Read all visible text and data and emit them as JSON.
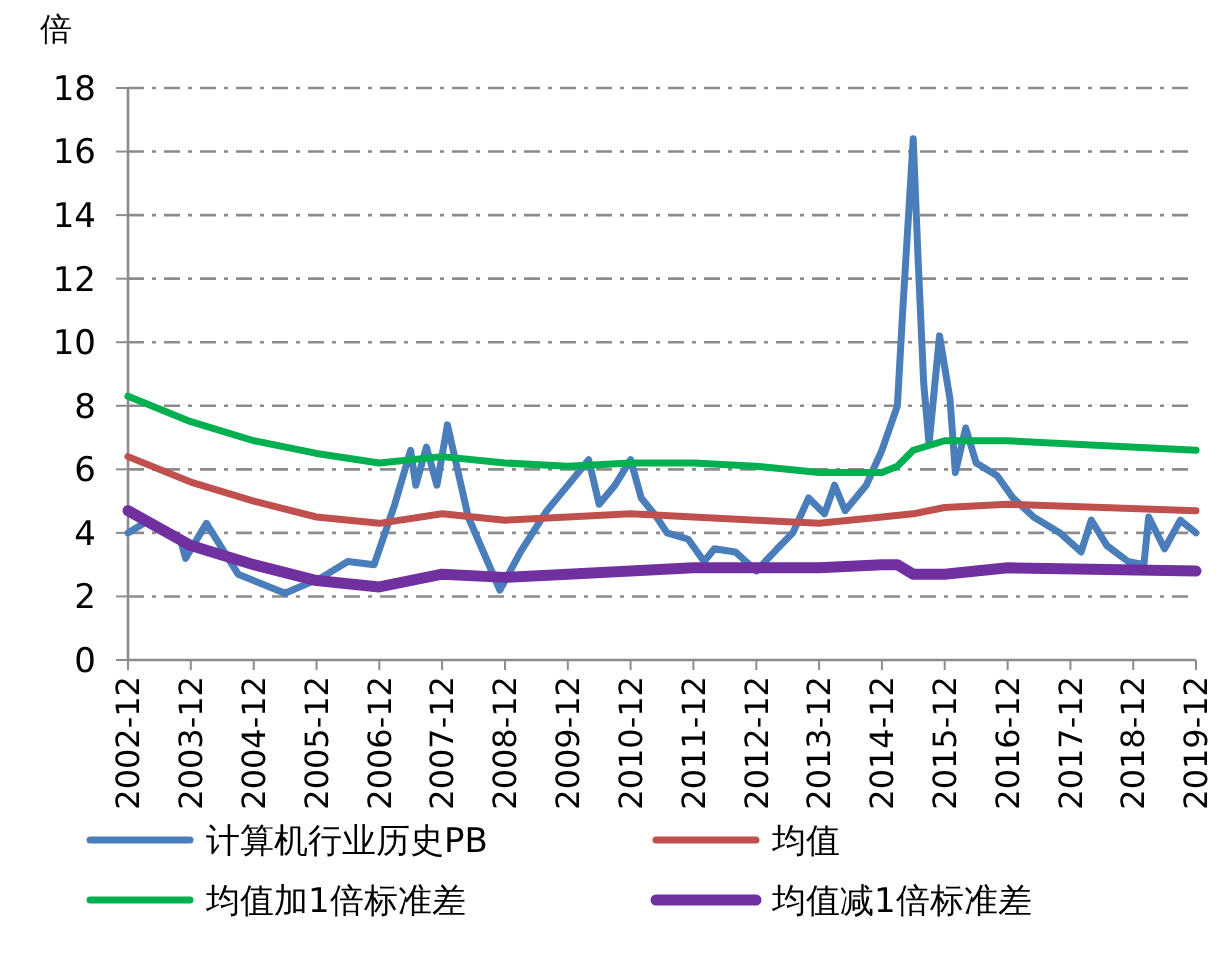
{
  "chart_data": {
    "type": "line",
    "ylabel": "倍",
    "x": [
      "2002-12",
      "2003-04",
      "2003-10",
      "2003-11",
      "2004-03",
      "2004-09",
      "2005-06",
      "2006-01",
      "2006-06",
      "2006-11",
      "2007-03",
      "2007-06",
      "2007-07",
      "2007-09",
      "2007-11",
      "2008-01",
      "2008-05",
      "2008-11",
      "2009-03",
      "2009-08",
      "2010-01",
      "2010-04",
      "2010-06",
      "2010-09",
      "2010-12",
      "2011-02",
      "2011-05",
      "2011-07",
      "2011-11",
      "2012-02",
      "2012-04",
      "2012-08",
      "2012-12",
      "2013-04",
      "2013-07",
      "2013-10",
      "2014-01",
      "2014-03",
      "2014-05",
      "2014-09",
      "2014-12",
      "2015-03",
      "2015-04",
      "2015-06",
      "2015-07",
      "2015-08",
      "2015-09",
      "2015-11",
      "2016-01",
      "2016-02",
      "2016-04",
      "2016-06",
      "2016-10",
      "2017-01",
      "2017-05",
      "2017-10",
      "2018-02",
      "2018-04",
      "2018-07",
      "2018-11",
      "2019-02",
      "2019-03",
      "2019-06",
      "2019-09",
      "2019-12"
    ],
    "series": [
      {
        "name": "计算机行业历史PB",
        "color": "#4a7ebb",
        "values": [
          4.0,
          4.4,
          3.8,
          3.2,
          4.3,
          2.7,
          2.1,
          2.6,
          3.1,
          3.0,
          4.9,
          6.6,
          5.5,
          6.7,
          5.5,
          7.4,
          4.5,
          2.2,
          3.4,
          4.7,
          5.7,
          6.3,
          4.9,
          5.5,
          6.3,
          5.1,
          4.5,
          4.0,
          3.8,
          3.1,
          3.5,
          3.4,
          2.8,
          3.5,
          4.0,
          5.1,
          4.6,
          5.5,
          4.7,
          5.5,
          6.6,
          8.0,
          11.0,
          16.4,
          12.4,
          8.7,
          6.8,
          10.2,
          8.2,
          5.9,
          7.3,
          6.2,
          5.8,
          5.1,
          4.5,
          4.0,
          3.4,
          4.4,
          3.6,
          3.1,
          3.0,
          4.5,
          3.5,
          4.4,
          4.0
        ]
      },
      {
        "name": "均值",
        "color": "#c0504d",
        "x": [
          "2002-12",
          "2003-12",
          "2004-12",
          "2005-12",
          "2006-12",
          "2007-12",
          "2008-12",
          "2009-12",
          "2010-12",
          "2011-12",
          "2012-12",
          "2013-12",
          "2014-12",
          "2015-06",
          "2015-12",
          "2016-12",
          "2019-12"
        ],
        "values": [
          6.4,
          5.6,
          5.0,
          4.5,
          4.3,
          4.6,
          4.4,
          4.5,
          4.6,
          4.5,
          4.4,
          4.3,
          4.5,
          4.6,
          4.8,
          4.9,
          4.7
        ]
      },
      {
        "name": "均值加1倍标准差",
        "color": "#00b050",
        "x": [
          "2002-12",
          "2003-12",
          "2004-12",
          "2005-12",
          "2006-12",
          "2007-12",
          "2008-12",
          "2009-12",
          "2010-12",
          "2011-12",
          "2012-12",
          "2013-12",
          "2014-12",
          "2015-03",
          "2015-06",
          "2015-12",
          "2016-12",
          "2019-12"
        ],
        "values": [
          8.3,
          7.5,
          6.9,
          6.5,
          6.2,
          6.4,
          6.2,
          6.1,
          6.2,
          6.2,
          6.1,
          5.9,
          5.9,
          6.1,
          6.6,
          6.9,
          6.9,
          6.6
        ]
      },
      {
        "name": "均值减1倍标准差",
        "color": "#7030a0",
        "x": [
          "2002-12",
          "2003-12",
          "2004-12",
          "2005-12",
          "2006-12",
          "2007-12",
          "2008-12",
          "2009-12",
          "2010-12",
          "2011-12",
          "2012-12",
          "2013-12",
          "2014-12",
          "2015-03",
          "2015-06",
          "2015-12",
          "2016-12",
          "2019-12"
        ],
        "values": [
          4.7,
          3.6,
          3.0,
          2.5,
          2.3,
          2.7,
          2.6,
          2.7,
          2.8,
          2.9,
          2.9,
          2.9,
          3.0,
          3.0,
          2.7,
          2.7,
          2.9,
          2.8
        ]
      }
    ],
    "xlim": [
      "2002-12",
      "2019-12"
    ],
    "xticks": [
      "2002-12",
      "2003-12",
      "2004-12",
      "2005-12",
      "2006-12",
      "2007-12",
      "2008-12",
      "2009-12",
      "2010-12",
      "2011-12",
      "2012-12",
      "2013-12",
      "2014-12",
      "2015-12",
      "2016-12",
      "2017-12",
      "2018-12",
      "2019-12"
    ],
    "ylim": [
      0,
      18
    ],
    "yticks": [
      0,
      2,
      4,
      6,
      8,
      10,
      12,
      14,
      16,
      18
    ],
    "grid": "y",
    "legend": "bottom",
    "marker": "none",
    "line_style": "solid"
  }
}
